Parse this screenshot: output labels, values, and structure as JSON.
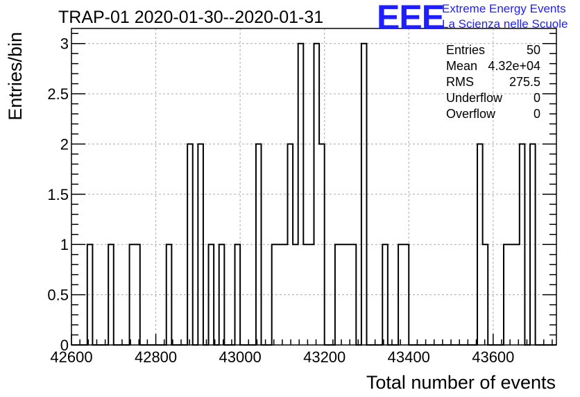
{
  "chart_data": {
    "type": "histogram",
    "title": "TRAP-01 2020-01-30--2020-01-31",
    "xlabel": "Total number of events",
    "ylabel": "Entries/bin",
    "xlim": [
      42600,
      43750
    ],
    "ylim": [
      0,
      3.15
    ],
    "grid": true,
    "bin_width": 12.5,
    "x_ticks": [
      42600,
      42800,
      43000,
      43200,
      43400,
      43600
    ],
    "x_tick_labels": [
      "42600",
      "42800",
      "43000",
      "43200",
      "43400",
      "43600"
    ],
    "y_ticks": [
      0,
      0.5,
      1,
      1.5,
      2,
      2.5,
      3
    ],
    "y_tick_labels": [
      "0",
      "0.5",
      "1",
      "1.5",
      "2",
      "2.5",
      "3"
    ],
    "bins": [
      {
        "x0": 42637.5,
        "x1": 42650.0,
        "count": 1
      },
      {
        "x0": 42687.5,
        "x1": 42700.0,
        "count": 1
      },
      {
        "x0": 42737.5,
        "x1": 42762.5,
        "count": 1
      },
      {
        "x0": 42825.0,
        "x1": 42837.5,
        "count": 1
      },
      {
        "x0": 42875.0,
        "x1": 42887.5,
        "count": 2
      },
      {
        "x0": 42900.0,
        "x1": 42912.5,
        "count": 2
      },
      {
        "x0": 42925.0,
        "x1": 42937.5,
        "count": 1
      },
      {
        "x0": 42950.0,
        "x1": 42962.5,
        "count": 1
      },
      {
        "x0": 42987.5,
        "x1": 43000.0,
        "count": 1
      },
      {
        "x0": 43037.5,
        "x1": 43050.0,
        "count": 2
      },
      {
        "x0": 43075.0,
        "x1": 43112.5,
        "count": 1
      },
      {
        "x0": 43112.5,
        "x1": 43125.0,
        "count": 2
      },
      {
        "x0": 43125.0,
        "x1": 43137.5,
        "count": 1
      },
      {
        "x0": 43137.5,
        "x1": 43150.0,
        "count": 3
      },
      {
        "x0": 43150.0,
        "x1": 43175.0,
        "count": 1
      },
      {
        "x0": 43175.0,
        "x1": 43187.5,
        "count": 3
      },
      {
        "x0": 43187.5,
        "x1": 43200.0,
        "count": 2
      },
      {
        "x0": 43225.0,
        "x1": 43275.0,
        "count": 1
      },
      {
        "x0": 43287.5,
        "x1": 43300.0,
        "count": 3
      },
      {
        "x0": 43337.5,
        "x1": 43350.0,
        "count": 1
      },
      {
        "x0": 43375.0,
        "x1": 43400.0,
        "count": 1
      },
      {
        "x0": 43562.5,
        "x1": 43575.0,
        "count": 2
      },
      {
        "x0": 43575.0,
        "x1": 43587.5,
        "count": 1
      },
      {
        "x0": 43625.0,
        "x1": 43662.5,
        "count": 1
      },
      {
        "x0": 43662.5,
        "x1": 43675.0,
        "count": 2
      },
      {
        "x0": 43687.5,
        "x1": 43700.0,
        "count": 2
      }
    ],
    "stats": [
      {
        "label": "Entries",
        "value": "50"
      },
      {
        "label": "Mean",
        "value": "4.32e+04"
      },
      {
        "label": "RMS",
        "value": "275.5"
      },
      {
        "label": "Underflow",
        "value": "0"
      },
      {
        "label": "Overflow",
        "value": "0"
      }
    ]
  },
  "logo": {
    "big": "EEE",
    "line1": "Extreme Energy Events",
    "line2": "La Scienza nelle Scuole"
  },
  "colors": {
    "line": "#000000",
    "grid": "#aaaaaa",
    "logo": "#1e1eff"
  }
}
